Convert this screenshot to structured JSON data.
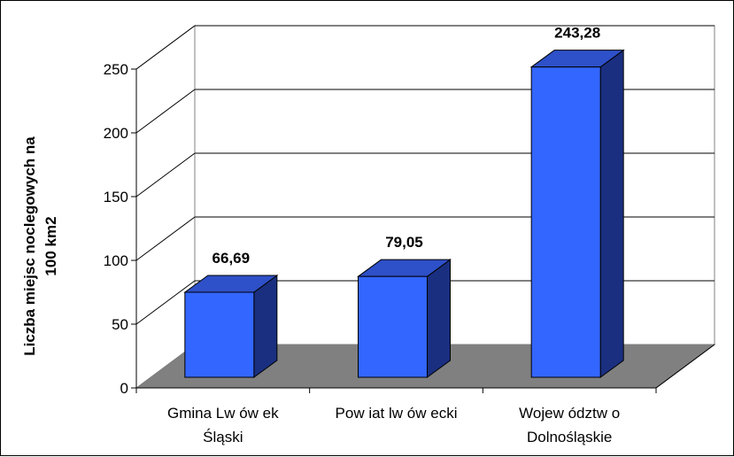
{
  "chart_data": {
    "type": "bar",
    "categories": [
      [
        "Gmina Lw ów ek",
        "Śląski"
      ],
      [
        "Pow iat lw ów ecki"
      ],
      [
        "Wojew ództw o",
        "Dolnośląskie"
      ]
    ],
    "values": [
      66.69,
      79.05,
      243.28
    ],
    "data_labels": [
      "66,69",
      "79,05",
      "243,28"
    ],
    "ylabel": [
      "Liczba miejsc noclegowych na",
      "100 km2"
    ],
    "ylim": [
      0,
      250
    ],
    "yticks": [
      "0",
      "50",
      "100",
      "150",
      "200",
      "250"
    ],
    "grid": true,
    "colors": {
      "bar_front": "#3366ff",
      "bar_top": "#2e50c8",
      "bar_side": "#1a2f80",
      "floor": "#808080",
      "grid": "#000000"
    }
  }
}
